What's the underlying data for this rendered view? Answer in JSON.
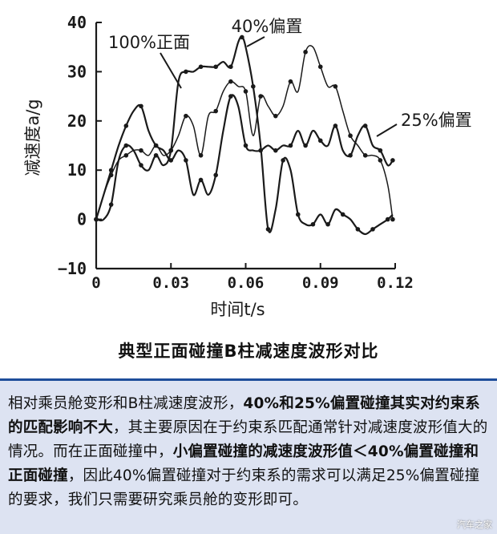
{
  "chart_data": {
    "type": "line",
    "title": "",
    "xlabel": "时间t/s",
    "ylabel": "减速度a/g",
    "xlim": [
      0,
      0.12
    ],
    "ylim": [
      -10,
      40
    ],
    "xticks": [
      "0",
      "0.03",
      "0.06",
      "0.09",
      "0.12"
    ],
    "yticks": [
      "−10",
      "0",
      "10",
      "20",
      "30",
      "40"
    ],
    "series": [
      {
        "name": "100%正面",
        "label_style": "callout-left",
        "x": [
          0,
          0.003,
          0.006,
          0.009,
          0.012,
          0.015,
          0.018,
          0.021,
          0.024,
          0.027,
          0.03,
          0.033,
          0.036,
          0.039,
          0.042,
          0.045,
          0.048,
          0.051,
          0.054,
          0.057,
          0.0585,
          0.06,
          0.063,
          0.066,
          0.069,
          0.072,
          0.075,
          0.078,
          0.081,
          0.084,
          0.087,
          0.09,
          0.093,
          0.096,
          0.099,
          0.102,
          0.105,
          0.108,
          0.111,
          0.114,
          0.117,
          0.119
        ],
        "values": [
          0,
          0,
          3,
          12,
          15,
          14,
          11,
          10,
          13,
          11,
          14,
          28,
          30,
          30,
          31,
          31,
          31,
          32,
          31,
          36,
          37,
          35,
          27,
          15,
          -2,
          2,
          12,
          10,
          1,
          -1,
          -1,
          1,
          -1,
          2,
          1,
          0,
          -2,
          -3,
          -2,
          -1,
          0,
          1
        ]
      },
      {
        "name": "40%偏置",
        "label_style": "callout-top",
        "x": [
          0,
          0.003,
          0.006,
          0.009,
          0.012,
          0.015,
          0.018,
          0.021,
          0.024,
          0.027,
          0.03,
          0.033,
          0.036,
          0.039,
          0.042,
          0.045,
          0.048,
          0.051,
          0.054,
          0.057,
          0.06,
          0.063,
          0.066,
          0.069,
          0.072,
          0.075,
          0.078,
          0.081,
          0.084,
          0.087,
          0.09,
          0.093,
          0.096,
          0.099,
          0.102,
          0.105,
          0.108,
          0.111,
          0.114,
          0.117,
          0.119
        ],
        "values": [
          0,
          5,
          9,
          12,
          13,
          14,
          14,
          13,
          15,
          13,
          14,
          17,
          21,
          19,
          13,
          21,
          22,
          26,
          28,
          27,
          26,
          17,
          25,
          23,
          21,
          23,
          28,
          26,
          34,
          35,
          31,
          27,
          27,
          22,
          17,
          15,
          13,
          13,
          12,
          7,
          0
        ]
      },
      {
        "name": "25%偏置",
        "label_style": "callout-right",
        "x": [
          0,
          0.003,
          0.006,
          0.009,
          0.012,
          0.015,
          0.018,
          0.021,
          0.024,
          0.027,
          0.03,
          0.033,
          0.036,
          0.039,
          0.042,
          0.045,
          0.048,
          0.051,
          0.054,
          0.057,
          0.06,
          0.063,
          0.066,
          0.069,
          0.072,
          0.075,
          0.078,
          0.081,
          0.084,
          0.087,
          0.09,
          0.093,
          0.096,
          0.099,
          0.102,
          0.105,
          0.108,
          0.111,
          0.114,
          0.117,
          0.119
        ],
        "values": [
          0,
          5,
          10,
          15,
          19,
          22,
          23,
          18,
          15,
          14,
          12,
          14,
          12,
          5,
          8,
          5,
          9,
          18,
          25,
          23,
          15,
          14,
          14,
          15,
          14,
          15,
          15,
          18,
          15,
          18,
          16,
          15,
          19,
          14,
          13,
          17,
          19,
          15,
          14,
          11,
          12
        ]
      }
    ],
    "grid": false,
    "legend": "inline callouts"
  },
  "caption": "典型正面碰撞B柱减速度波形对比",
  "note": {
    "segments": [
      {
        "text": "相对乘员舱变形和B柱减速度波形，",
        "bold": false
      },
      {
        "text": "40%和25%偏置碰撞其实对约束系的匹配影响不大",
        "bold": true
      },
      {
        "text": "，其主要原因在于约束系匹配通常针对减速度波形值大的情况。而在正面碰撞中，",
        "bold": false
      },
      {
        "text": "小偏置碰撞的减速度波形值＜40%偏置碰撞和正面碰撞",
        "bold": true
      },
      {
        "text": "，因此40%偏置碰撞对于约束系的需求可以满足25%偏置碰撞的要求，我们只需要研究乘员舱的变形即可。",
        "bold": false
      }
    ]
  },
  "watermark": "汽车之家",
  "colors": {
    "line": "#1a1a1a",
    "note_bg": "#dde3f2",
    "note_border": "#1e4d9a"
  }
}
